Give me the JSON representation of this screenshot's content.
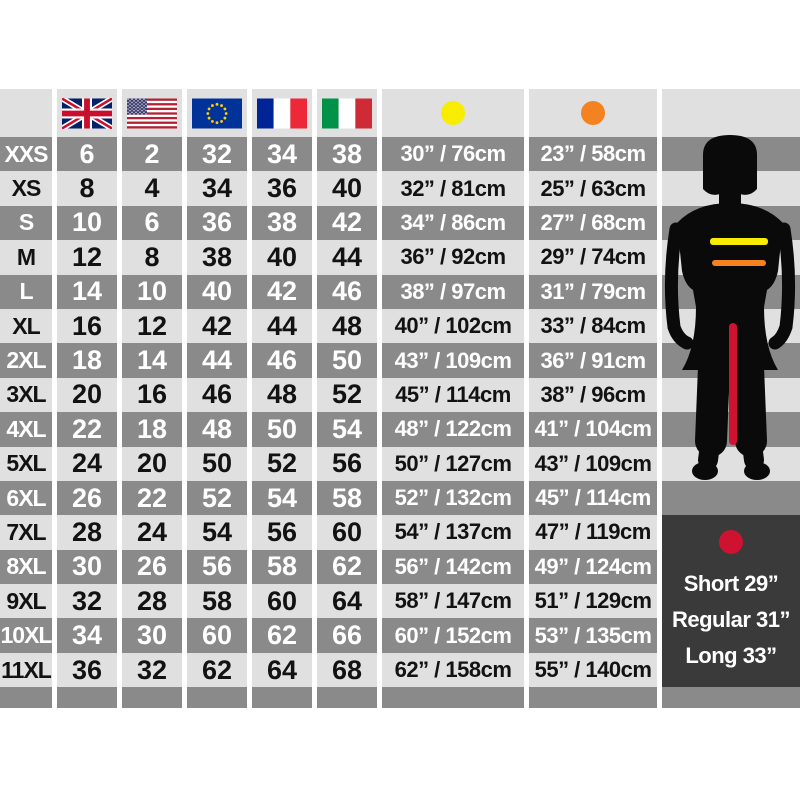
{
  "icons": {
    "flags": [
      "uk-flag",
      "us-flag",
      "eu-flag",
      "france-flag",
      "italy-flag"
    ],
    "chest_marker": "yellow-dot",
    "waist_marker": "orange-dot",
    "inseam_marker": "red-dot"
  },
  "colors": {
    "row_light": "#e0e0e0",
    "row_dark": "#8a8a8a",
    "panel_dark": "#3a3a3a",
    "chest_accent": "#f8ec00",
    "waist_accent": "#f58220",
    "inseam_accent": "#ce1230",
    "silhouette": "#0a0a0a"
  },
  "chart_data": {
    "type": "table",
    "columns": [
      {
        "key": "size",
        "icon": ""
      },
      {
        "key": "uk",
        "icon": "uk-flag"
      },
      {
        "key": "us",
        "icon": "us-flag"
      },
      {
        "key": "eu",
        "icon": "eu-flag"
      },
      {
        "key": "fr",
        "icon": "france-flag"
      },
      {
        "key": "it",
        "icon": "italy-flag"
      },
      {
        "key": "chest",
        "icon": "yellow-dot"
      },
      {
        "key": "waist",
        "icon": "orange-dot"
      }
    ],
    "rows": [
      {
        "size": "XXS",
        "uk": 6,
        "us": 2,
        "eu": 32,
        "fr": 34,
        "it": 38,
        "chest": "30” / 76cm",
        "waist": "23” / 58cm"
      },
      {
        "size": "XS",
        "uk": 8,
        "us": 4,
        "eu": 34,
        "fr": 36,
        "it": 40,
        "chest": "32” / 81cm",
        "waist": "25” / 63cm"
      },
      {
        "size": "S",
        "uk": 10,
        "us": 6,
        "eu": 36,
        "fr": 38,
        "it": 42,
        "chest": "34” / 86cm",
        "waist": "27” / 68cm"
      },
      {
        "size": "M",
        "uk": 12,
        "us": 8,
        "eu": 38,
        "fr": 40,
        "it": 44,
        "chest": "36” / 92cm",
        "waist": "29” / 74cm"
      },
      {
        "size": "L",
        "uk": 14,
        "us": 10,
        "eu": 40,
        "fr": 42,
        "it": 46,
        "chest": "38” / 97cm",
        "waist": "31” / 79cm"
      },
      {
        "size": "XL",
        "uk": 16,
        "us": 12,
        "eu": 42,
        "fr": 44,
        "it": 48,
        "chest": "40” / 102cm",
        "waist": "33” / 84cm"
      },
      {
        "size": "2XL",
        "uk": 18,
        "us": 14,
        "eu": 44,
        "fr": 46,
        "it": 50,
        "chest": "43” / 109cm",
        "waist": "36” / 91cm"
      },
      {
        "size": "3XL",
        "uk": 20,
        "us": 16,
        "eu": 46,
        "fr": 48,
        "it": 52,
        "chest": "45” / 114cm",
        "waist": "38” / 96cm"
      },
      {
        "size": "4XL",
        "uk": 22,
        "us": 18,
        "eu": 48,
        "fr": 50,
        "it": 54,
        "chest": "48” / 122cm",
        "waist": "41” / 104cm"
      },
      {
        "size": "5XL",
        "uk": 24,
        "us": 20,
        "eu": 50,
        "fr": 52,
        "it": 56,
        "chest": "50” / 127cm",
        "waist": "43” / 109cm"
      },
      {
        "size": "6XL",
        "uk": 26,
        "us": 22,
        "eu": 52,
        "fr": 54,
        "it": 58,
        "chest": "52” / 132cm",
        "waist": "45” / 114cm"
      },
      {
        "size": "7XL",
        "uk": 28,
        "us": 24,
        "eu": 54,
        "fr": 56,
        "it": 60,
        "chest": "54” / 137cm",
        "waist": "47” / 119cm"
      },
      {
        "size": "8XL",
        "uk": 30,
        "us": 26,
        "eu": 56,
        "fr": 58,
        "it": 62,
        "chest": "56” / 142cm",
        "waist": "49” / 124cm"
      },
      {
        "size": "9XL",
        "uk": 32,
        "us": 28,
        "eu": 58,
        "fr": 60,
        "it": 64,
        "chest": "58” / 147cm",
        "waist": "51” / 129cm"
      },
      {
        "size": "10XL",
        "uk": 34,
        "us": 30,
        "eu": 60,
        "fr": 62,
        "it": 66,
        "chest": "60” / 152cm",
        "waist": "53” / 135cm"
      },
      {
        "size": "11XL",
        "uk": 36,
        "us": 32,
        "eu": 62,
        "fr": 64,
        "it": 68,
        "chest": "62” / 158cm",
        "waist": "55” / 140cm"
      }
    ],
    "leg_lengths": [
      "Short 29”",
      "Regular 31”",
      "Long 33”"
    ]
  }
}
